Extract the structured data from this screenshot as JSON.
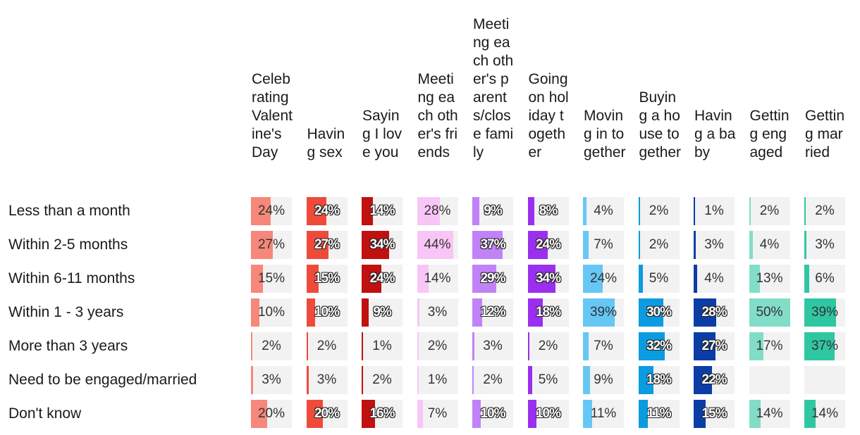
{
  "chart_data": {
    "type": "table",
    "title": "",
    "xlabel": "",
    "ylabel": "",
    "categories": [
      "Less than a month",
      "Within 2-5 months",
      "Within 6-11 months",
      "Within 1 - 3 years",
      "More than 3 years",
      "Need to be engaged/married",
      "Don't know"
    ],
    "series": [
      {
        "name": "Celebrating Valentine's Day",
        "color": "#f5887a",
        "inverted": false,
        "values": [
          24,
          27,
          15,
          10,
          2,
          3,
          20
        ],
        "labels": [
          "24%",
          "27%",
          "15%",
          "10%",
          "2%",
          "3%",
          "20%"
        ]
      },
      {
        "name": "Having sex",
        "color": "#f04a3a",
        "inverted": true,
        "values": [
          24,
          27,
          15,
          10,
          2,
          3,
          20
        ],
        "labels": [
          "24%",
          "27%",
          "15%",
          "10%",
          "2%",
          "3%",
          "20%"
        ]
      },
      {
        "name": "Saying I love you",
        "color": "#c0100f",
        "inverted": true,
        "values": [
          14,
          34,
          24,
          9,
          1,
          2,
          16
        ],
        "labels": [
          "14%",
          "34%",
          "24%",
          "9%",
          "1%",
          "2%",
          "16%"
        ]
      },
      {
        "name": "Meeting each other's friends",
        "color": "#f8c6f6",
        "inverted": false,
        "values": [
          28,
          44,
          14,
          3,
          2,
          1,
          7
        ],
        "labels": [
          "28%",
          "44%",
          "14%",
          "3%",
          "2%",
          "1%",
          "7%"
        ]
      },
      {
        "name": "Meeting each other's parents/close family",
        "color": "#c182f8",
        "inverted": true,
        "values": [
          9,
          37,
          29,
          12,
          3,
          2,
          10
        ],
        "labels": [
          "9%",
          "37%",
          "29%",
          "12%",
          "3%",
          "2%",
          "10%"
        ]
      },
      {
        "name": "Going on holiday together",
        "color": "#9b2ff0",
        "inverted": true,
        "values": [
          8,
          24,
          34,
          18,
          2,
          5,
          10
        ],
        "labels": [
          "8%",
          "24%",
          "34%",
          "18%",
          "2%",
          "5%",
          "10%"
        ]
      },
      {
        "name": "Moving in together",
        "color": "#66c7f4",
        "inverted": false,
        "values": [
          4,
          7,
          24,
          39,
          7,
          9,
          11
        ],
        "labels": [
          "4%",
          "7%",
          "24%",
          "39%",
          "7%",
          "9%",
          "11%"
        ]
      },
      {
        "name": "Buying a house together",
        "color": "#0b9be0",
        "inverted": true,
        "values": [
          2,
          2,
          5,
          30,
          32,
          18,
          11
        ],
        "labels": [
          "2%",
          "2%",
          "5%",
          "30%",
          "32%",
          "18%",
          "11%"
        ]
      },
      {
        "name": "Having a baby",
        "color": "#0b3da6",
        "inverted": true,
        "values": [
          1,
          3,
          4,
          28,
          27,
          22,
          15
        ],
        "labels": [
          "1%",
          "3%",
          "4%",
          "28%",
          "27%",
          "22%",
          "15%"
        ]
      },
      {
        "name": "Getting engaged",
        "color": "#82ddc8",
        "inverted": false,
        "values": [
          2,
          4,
          13,
          50,
          17,
          null,
          14
        ],
        "labels": [
          "2%",
          "4%",
          "13%",
          "50%",
          "17%",
          "",
          "14%"
        ]
      },
      {
        "name": "Getting married",
        "color": "#2fc7a2",
        "inverted": false,
        "values": [
          2,
          3,
          6,
          39,
          37,
          null,
          14
        ],
        "labels": [
          "2%",
          "3%",
          "6%",
          "39%",
          "37%",
          "",
          "14%"
        ]
      }
    ],
    "value_max": 50,
    "grid": false,
    "legend": "none"
  }
}
